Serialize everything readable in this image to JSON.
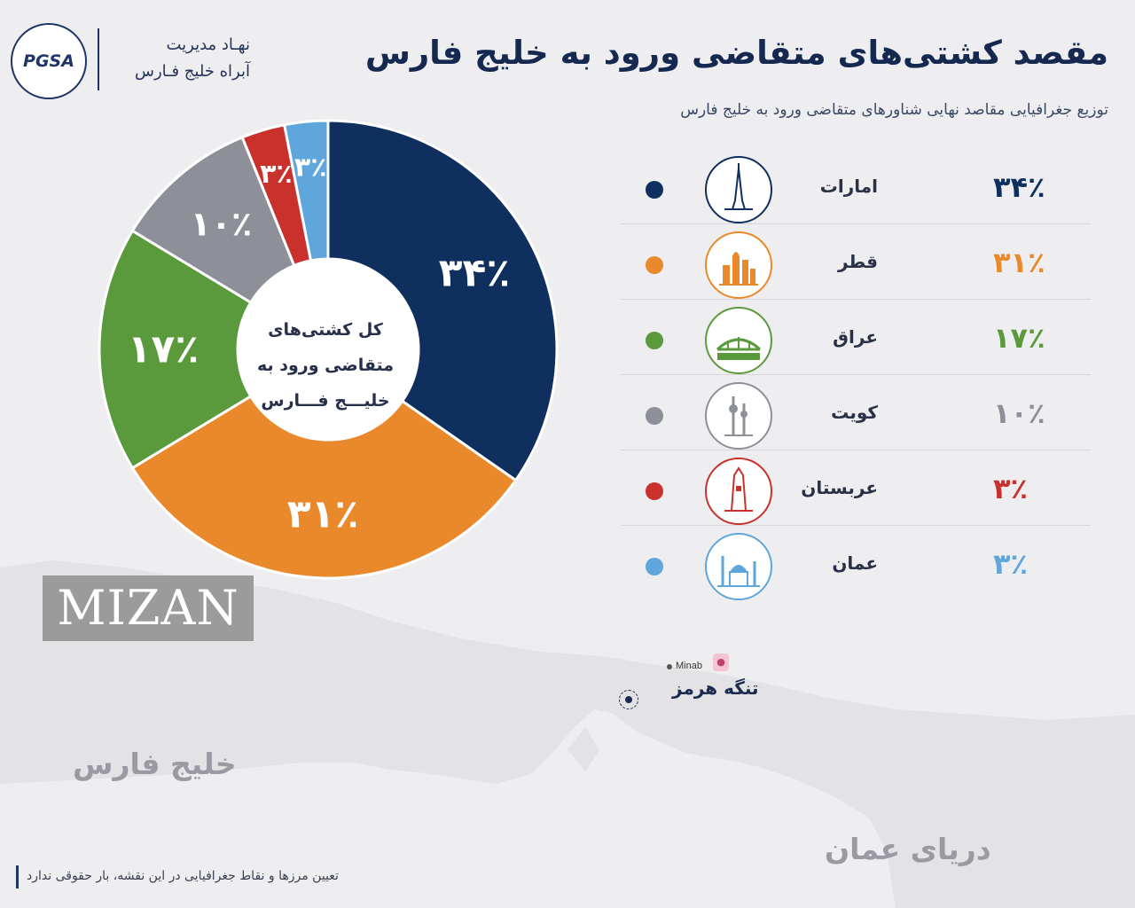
{
  "header": {
    "logo_text": "PGSA",
    "org_line1": "نهـاد مدیریت",
    "org_line2": "آبراه خلیج فـارس",
    "title": "مقصد کشتی‌های متقاضی ورود به خلیج فارس",
    "subtitle": "توزیع جغرافیایی مقاصد نهایی شناورهای متقاضی ورود به خلیج فارس"
  },
  "chart_data": {
    "type": "pie",
    "title": "مقصد کشتی‌های متقاضی ورود به خلیج فارس",
    "subtitle": "توزیع جغرافیایی مقاصد نهایی شناورهای متقاضی ورود به خلیج فارس",
    "center_label": "کل کشتی‌های متقاضی ورود به خلیـــج فـــارس",
    "unit": "%",
    "legend_position": "right",
    "slices": [
      {
        "label": "امارات",
        "value": 34,
        "display": "۳۴٪",
        "color": "#0f2f5e",
        "icon": "burj-khalifa-icon"
      },
      {
        "label": "قطر",
        "value": 31,
        "display": "۳۱٪",
        "color": "#e9892b",
        "icon": "doha-skyline-icon"
      },
      {
        "label": "عراق",
        "value": 17,
        "display": "۱۷٪",
        "color": "#5b9a3c",
        "icon": "bridge-icon"
      },
      {
        "label": "کویت",
        "value": 10,
        "display": "۱۰٪",
        "color": "#8d9099",
        "icon": "kuwait-towers-icon"
      },
      {
        "label": "عربستان",
        "value": 3,
        "display": "۳٪",
        "color": "#c8312c",
        "icon": "kingdom-tower-icon"
      },
      {
        "label": "عمان",
        "value": 3,
        "display": "۳٪",
        "color": "#5fa6dc",
        "icon": "mosque-icon"
      }
    ]
  },
  "map": {
    "gulf_label": "خلیج فارس",
    "sea_label": "دریای عمان",
    "strait_label": "تنگه هرمز",
    "city_label": "Minab"
  },
  "watermark": "MIZAN",
  "disclaimer": "تعیین مرزها و نقاط جغرافیایی در این نقشه، بار حقوقی ندارد"
}
